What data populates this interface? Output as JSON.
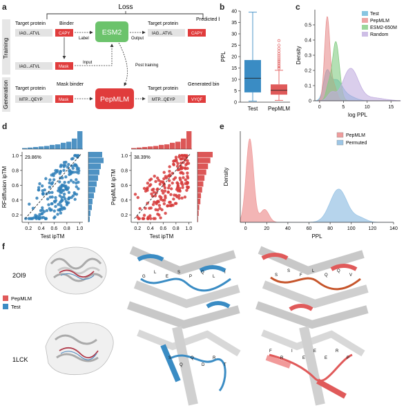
{
  "panel_labels": {
    "a": "a",
    "b": "b",
    "c": "c",
    "d": "d",
    "e": "e",
    "f": "f"
  },
  "panel_a": {
    "loss": "Loss",
    "side_training": "Training",
    "side_generation": "Generation",
    "target_protein": "Target protein",
    "binder": "Binder",
    "seq_target": "IAG...ATVL",
    "seq_binder": "CAPY",
    "label": "Label",
    "esm2": "ESM2",
    "output": "Output",
    "predicted_binder": "Predicted binder",
    "seq_pred_target": "IAG...ATVL",
    "seq_pred_binder": "CAPY",
    "seq_mask_target": "IAG...ATVL",
    "mask": "Mask",
    "input": "Input",
    "post_training": "Post training",
    "gen_target_protein": "Target protein",
    "mask_binder": "Mask binder",
    "seq_gen_target": "MTP...QEYP",
    "gen_mask": "Mask",
    "pepmlm": "PepMLM",
    "generated_binder": "Generated binder",
    "seq_gen_out_target": "MTP...QEYP",
    "seq_gen_out_binder": "VYQF"
  },
  "panel_f": {
    "legend_pepmlm": "PepMLM",
    "legend_test": "Test",
    "row1_label": "2OI9",
    "row2_label": "1LCK",
    "residues_r1_test": [
      "G",
      "L",
      "E",
      "S",
      "P",
      "Q",
      "L",
      "I"
    ],
    "residues_r1_pep": [
      "S",
      "S",
      "F",
      "L",
      "Q",
      "Q",
      "V"
    ],
    "residues_r2_test": [
      "S",
      "Q",
      "Q",
      "D",
      "R",
      "T"
    ],
    "residues_r2_pep": [
      "F",
      "R",
      "I",
      "E",
      "E",
      "E",
      "R",
      "P"
    ]
  },
  "colors": {
    "pepmlm": "#e05a5a",
    "test": "#3a8cc4",
    "esm": "#6cc36c",
    "random": "#b9a3d6",
    "mask": "#e03c3c",
    "permuted": "#6aa9d8"
  },
  "chart_data": [
    {
      "id": "b",
      "type": "box",
      "ylabel": "PPL",
      "categories": [
        "Test",
        "PepMLM"
      ],
      "ylim": [
        0,
        40
      ],
      "yticks": [
        0,
        5,
        10,
        15,
        20,
        25,
        30,
        35,
        40
      ],
      "boxes": [
        {
          "name": "Test",
          "whisker_low": 0.5,
          "q1": 4.3,
          "median": 10.5,
          "q3": 18.5,
          "whisker_high": 39.5,
          "color": "#3a8cc4"
        },
        {
          "name": "PepMLM",
          "whisker_low": 0.8,
          "q1": 3.3,
          "median": 5.2,
          "q3": 7.8,
          "whisker_high": 14,
          "color": "#e05a5a",
          "outliers": [
            14.8,
            15.5,
            16.2,
            17,
            17.8,
            18.5,
            19.4,
            20.3,
            21.2,
            22.4,
            23.6,
            25,
            27
          ]
        }
      ]
    },
    {
      "id": "c",
      "type": "area",
      "xlabel": "log PPL",
      "ylabel": "Density",
      "xlim": [
        -1,
        17
      ],
      "ylim": [
        0,
        0.6
      ],
      "xticks": [
        0,
        5,
        10,
        15
      ],
      "yticks": [
        0,
        0.1,
        0.2,
        0.3,
        0.4,
        0.5
      ],
      "legend_position": "top-right",
      "series": [
        {
          "name": "Test",
          "color": "#6ab7d9",
          "peaks": [
            [
              1.5,
              0.17,
              0.7
            ],
            [
              3.5,
              0.13,
              1.2
            ],
            [
              6,
              0.03,
              1.5
            ]
          ]
        },
        {
          "name": "PepMLM",
          "color": "#e88f8f",
          "peaks": [
            [
              1.6,
              0.55,
              0.55
            ],
            [
              3,
              0.1,
              0.6
            ]
          ]
        },
        {
          "name": "ESM2-650M",
          "color": "#82cc82",
          "peaks": [
            [
              3.4,
              0.39,
              0.75
            ],
            [
              1.8,
              0.08,
              0.5
            ]
          ]
        },
        {
          "name": "Random",
          "color": "#c2aee0",
          "peaks": [
            [
              6.5,
              0.21,
              1.6
            ],
            [
              2.5,
              0.05,
              0.8
            ],
            [
              11,
              0.02,
              2.5
            ]
          ]
        }
      ]
    },
    {
      "id": "d1",
      "type": "scatter",
      "xlabel": "Test ipTM",
      "ylabel": "RFdiffusion ipTM",
      "annotation": "29.86%",
      "xlim": [
        0.1,
        1.05
      ],
      "ylim": [
        0.1,
        1.05
      ],
      "xticks": [
        0.2,
        0.4,
        0.6,
        0.8,
        1.0
      ],
      "yticks": [
        0.2,
        0.4,
        0.6,
        0.8,
        1.0
      ],
      "color": "#2f7fb8",
      "hist_top": [
        2,
        3,
        4,
        5,
        6,
        8,
        9,
        12,
        14,
        20,
        34
      ],
      "hist_right": [
        2,
        3,
        5,
        6,
        8,
        10,
        12,
        14,
        16,
        18,
        22,
        20
      ]
    },
    {
      "id": "d2",
      "type": "scatter",
      "xlabel": "Test ipTM",
      "ylabel": "PepMLM ipTM",
      "annotation": "38.39%",
      "xlim": [
        0.1,
        1.05
      ],
      "ylim": [
        0.1,
        1.05
      ],
      "xticks": [
        0.2,
        0.4,
        0.6,
        0.8,
        1.0
      ],
      "yticks": [
        0.2,
        0.4,
        0.6,
        0.8,
        1.0
      ],
      "color": "#d63a3a",
      "hist_top": [
        2,
        3,
        4,
        5,
        6,
        8,
        9,
        12,
        14,
        20,
        34
      ],
      "hist_right": [
        1,
        2,
        3,
        5,
        6,
        8,
        10,
        12,
        15,
        18,
        22,
        26
      ]
    },
    {
      "id": "e",
      "type": "area",
      "xlabel": "PPL",
      "ylabel": "Density",
      "xlim": [
        -5,
        140
      ],
      "ylim": [
        0,
        0.085
      ],
      "xticks": [
        0,
        20,
        40,
        60,
        80,
        100,
        120,
        140
      ],
      "legend_position": "top-right",
      "series": [
        {
          "name": "PepMLM",
          "color": "#ef9c9c",
          "peaks": [
            [
              4,
              0.078,
              3.5
            ],
            [
              18,
              0.012,
              4
            ]
          ]
        },
        {
          "name": "Permuted",
          "color": "#9dc6e6",
          "peaks": [
            [
              88,
              0.031,
              8
            ],
            [
              108,
              0.004,
              6
            ]
          ]
        }
      ]
    }
  ]
}
